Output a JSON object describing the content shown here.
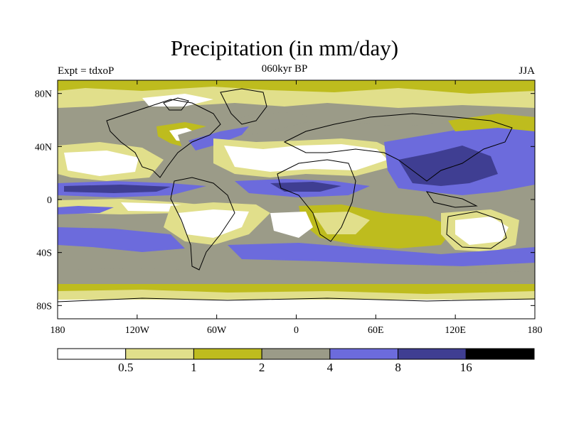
{
  "header": {
    "title": "Precipitation (in mm/day)",
    "left_label": "Expt = tdxoP",
    "center_label": "060kyr BP",
    "right_label": "JJA"
  },
  "map": {
    "projection": "cylindrical equidistant",
    "variable": "precipitation",
    "units": "mm/day",
    "x_ticks": [
      "180",
      "120W",
      "60W",
      "0",
      "60E",
      "120E",
      "180"
    ],
    "y_ticks": [
      "80N",
      "40N",
      "0",
      "40S",
      "80S"
    ],
    "x_tick_lon": [
      -180,
      -120,
      -60,
      0,
      60,
      120,
      180
    ],
    "y_tick_lat": [
      80,
      40,
      0,
      -40,
      -80
    ],
    "lat_range": [
      -90,
      90
    ],
    "lon_range": [
      -180,
      180
    ]
  },
  "colorbar": {
    "levels": [
      "0.5",
      "1",
      "2",
      "4",
      "8",
      "16"
    ],
    "colors": [
      "#ffffff",
      "#e1df8b",
      "#bebc1e",
      "#9b9b88",
      "#6c6bdc",
      "#3f3e92",
      "#000000"
    ]
  }
}
